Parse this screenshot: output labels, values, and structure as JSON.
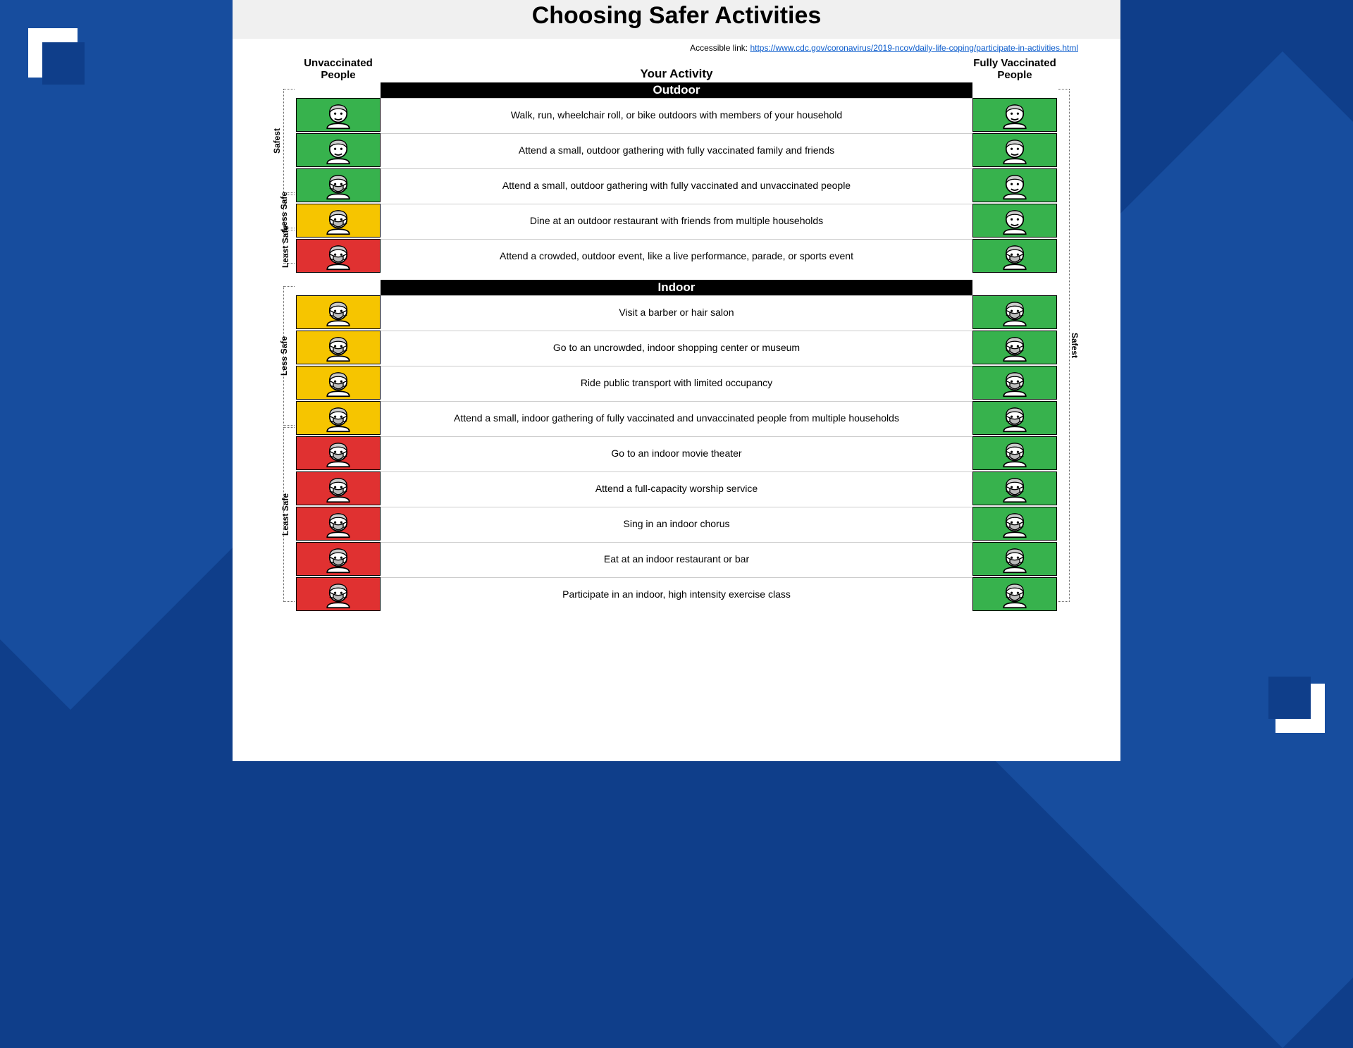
{
  "title": "Choosing Safer Activities",
  "accessible_label": "Accessible link:",
  "accessible_url": "https://www.cdc.gov/coronavirus/2019-ncov/daily-life-coping/participate-in-activities.html",
  "col_left": "Unvaccinated People",
  "col_mid": "Your Activity",
  "col_right": "Fully Vaccinated People",
  "sec_outdoor": "Outdoor",
  "sec_indoor": "Indoor",
  "colors": {
    "green": "#37b24d",
    "yellow": "#f6c500",
    "red": "#e03131"
  },
  "outdoor": [
    {
      "text": "Walk, run, wheelchair roll, or bike outdoors with members of your household",
      "left_color": "green",
      "left_mask": false,
      "right_color": "green",
      "right_mask": false
    },
    {
      "text": "Attend a small, outdoor gathering with fully vaccinated family and friends",
      "left_color": "green",
      "left_mask": false,
      "right_color": "green",
      "right_mask": false
    },
    {
      "text": "Attend a small, outdoor gathering with fully vaccinated and unvaccinated people",
      "left_color": "green",
      "left_mask": true,
      "right_color": "green",
      "right_mask": false
    },
    {
      "text": "Dine at an outdoor restaurant with friends from multiple households",
      "left_color": "yellow",
      "left_mask": true,
      "right_color": "green",
      "right_mask": false
    },
    {
      "text": "Attend a crowded, outdoor event, like a live performance, parade, or sports event",
      "left_color": "red",
      "left_mask": true,
      "right_color": "green",
      "right_mask": true
    }
  ],
  "indoor": [
    {
      "text": "Visit a barber or hair salon",
      "left_color": "yellow",
      "left_mask": true,
      "right_color": "green",
      "right_mask": true
    },
    {
      "text": "Go to an uncrowded, indoor shopping center or museum",
      "left_color": "yellow",
      "left_mask": true,
      "right_color": "green",
      "right_mask": true
    },
    {
      "text": "Ride public transport with limited occupancy",
      "left_color": "yellow",
      "left_mask": true,
      "right_color": "green",
      "right_mask": true
    },
    {
      "text": "Attend a small, indoor gathering of fully vaccinated and unvaccinated people from multiple households",
      "left_color": "yellow",
      "left_mask": true,
      "right_color": "green",
      "right_mask": true
    },
    {
      "text": "Go to an indoor movie theater",
      "left_color": "red",
      "left_mask": true,
      "right_color": "green",
      "right_mask": true
    },
    {
      "text": "Attend a full-capacity worship service",
      "left_color": "red",
      "left_mask": true,
      "right_color": "green",
      "right_mask": true
    },
    {
      "text": "Sing in an indoor chorus",
      "left_color": "red",
      "left_mask": true,
      "right_color": "green",
      "right_mask": true
    },
    {
      "text": "Eat at an indoor restaurant or bar",
      "left_color": "red",
      "left_mask": true,
      "right_color": "green",
      "right_mask": true
    },
    {
      "text": "Participate in an indoor, high intensity exercise class",
      "left_color": "red",
      "left_mask": true,
      "right_color": "green",
      "right_mask": true
    }
  ],
  "brackets_left": [
    {
      "label": "Safest",
      "start": 0,
      "end": 2,
      "section": "outdoor"
    },
    {
      "label": "Less Safe",
      "start": 3,
      "end": 3,
      "section": "outdoor"
    },
    {
      "label": "Least Safe",
      "start": 4,
      "end": 4,
      "section": "outdoor"
    },
    {
      "label": "Less Safe",
      "start": 0,
      "end": 3,
      "section": "indoor"
    },
    {
      "label": "Least Safe",
      "start": 4,
      "end": 8,
      "section": "indoor"
    }
  ],
  "brackets_right": [
    {
      "label": "Safest",
      "start_section": "outdoor",
      "start": 0,
      "end_section": "indoor",
      "end": 8
    }
  ]
}
